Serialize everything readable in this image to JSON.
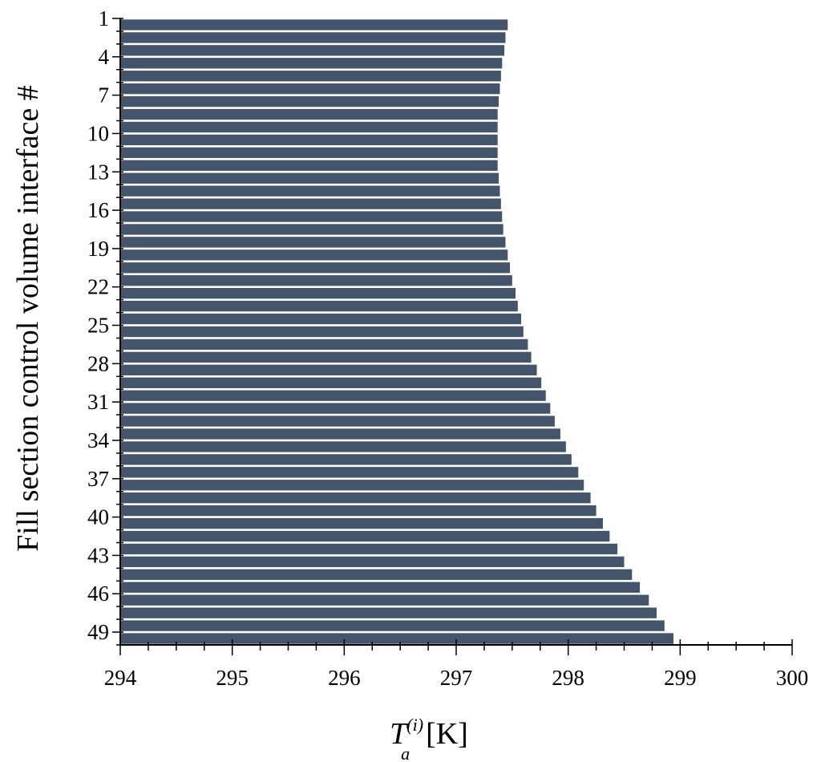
{
  "chart_data": {
    "type": "bar",
    "orientation": "horizontal",
    "title": "",
    "xlabel": "T_a^(i) [K]",
    "xlabel_parts": {
      "symbol": "T",
      "subscript": "a",
      "superscript": "(i)",
      "unit": "[K]"
    },
    "ylabel": "Fill section control volume interface #",
    "xlim": [
      294,
      300
    ],
    "x_ticks": [
      "294",
      "295",
      "296",
      "297",
      "298",
      "299",
      "300"
    ],
    "y_tick_labels": [
      "1",
      "4",
      "7",
      "10",
      "13",
      "16",
      "19",
      "22",
      "25",
      "28",
      "31",
      "34",
      "37",
      "40",
      "43",
      "46",
      "49"
    ],
    "grid": false,
    "bar_color": "#44546a",
    "categories": [
      1,
      2,
      3,
      4,
      5,
      6,
      7,
      8,
      9,
      10,
      11,
      12,
      13,
      14,
      15,
      16,
      17,
      18,
      19,
      20,
      21,
      22,
      23,
      24,
      25,
      26,
      27,
      28,
      29,
      30,
      31,
      32,
      33,
      34,
      35,
      36,
      37,
      38,
      39,
      40,
      41,
      42,
      43,
      44,
      45,
      46,
      47,
      48,
      49
    ],
    "values": [
      297.46,
      297.44,
      297.43,
      297.41,
      297.4,
      297.39,
      297.38,
      297.37,
      297.37,
      297.37,
      297.37,
      297.37,
      297.38,
      297.39,
      297.4,
      297.41,
      297.42,
      297.44,
      297.46,
      297.48,
      297.5,
      297.53,
      297.55,
      297.58,
      297.6,
      297.64,
      297.67,
      297.72,
      297.76,
      297.8,
      297.84,
      297.88,
      297.93,
      297.98,
      298.03,
      298.09,
      298.14,
      298.2,
      298.25,
      298.31,
      298.37,
      298.44,
      298.5,
      298.57,
      298.64,
      298.72,
      298.79,
      298.86,
      298.94
    ]
  }
}
